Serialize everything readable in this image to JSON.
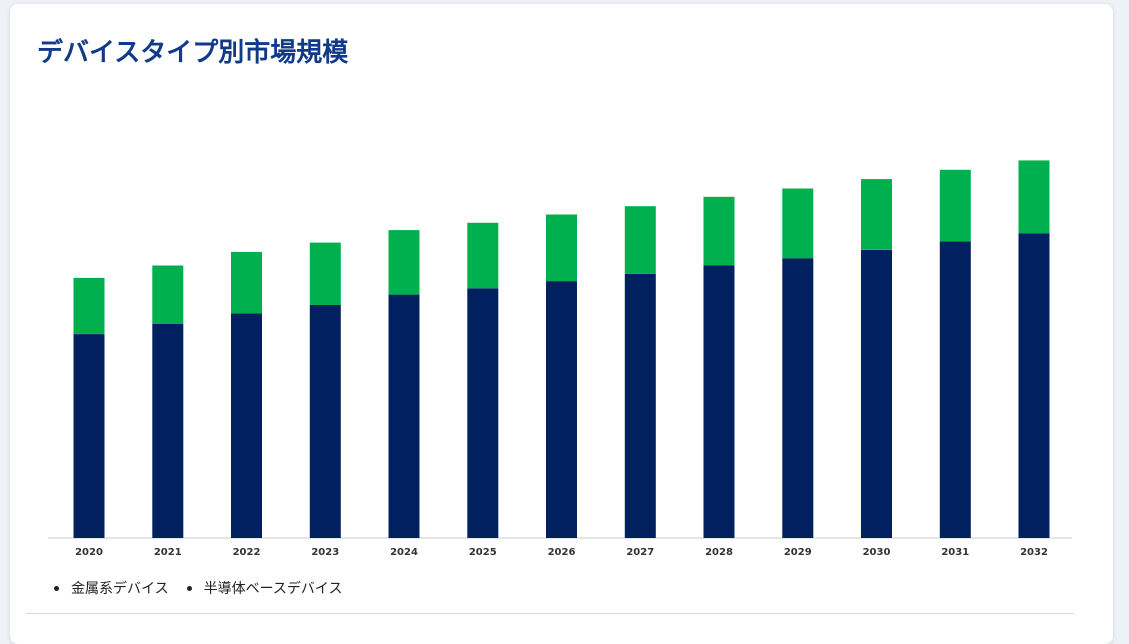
{
  "title": "デバイスタイプ別市場規模",
  "colors": {
    "metal": "#00205f",
    "semiconductor": "#00b04f",
    "title": "#113a8a",
    "axis": "#cccccc"
  },
  "chart_data": {
    "type": "bar",
    "stacked": true,
    "categories": [
      "2020",
      "2021",
      "2022",
      "2023",
      "2024",
      "2025",
      "2026",
      "2027",
      "2028",
      "2029",
      "2030",
      "2031",
      "2032"
    ],
    "series": [
      {
        "name": "金属系デバイス",
        "color": "#00205f",
        "values": [
          19.6,
          20.6,
          21.6,
          22.4,
          23.4,
          24.0,
          24.7,
          25.4,
          26.2,
          26.9,
          27.7,
          28.5,
          29.3
        ]
      },
      {
        "name": "半導体ベースデバイス",
        "color": "#00b04f",
        "values": [
          5.4,
          5.6,
          5.9,
          6.0,
          6.2,
          6.3,
          6.4,
          6.5,
          6.6,
          6.7,
          6.8,
          6.9,
          7.0
        ]
      }
    ],
    "ylim": [
      0,
      40
    ],
    "grid": false,
    "legend_position": "bottom-left"
  },
  "legend": {
    "items": [
      "金属系デバイス",
      "半導体ベースデバイス"
    ]
  }
}
